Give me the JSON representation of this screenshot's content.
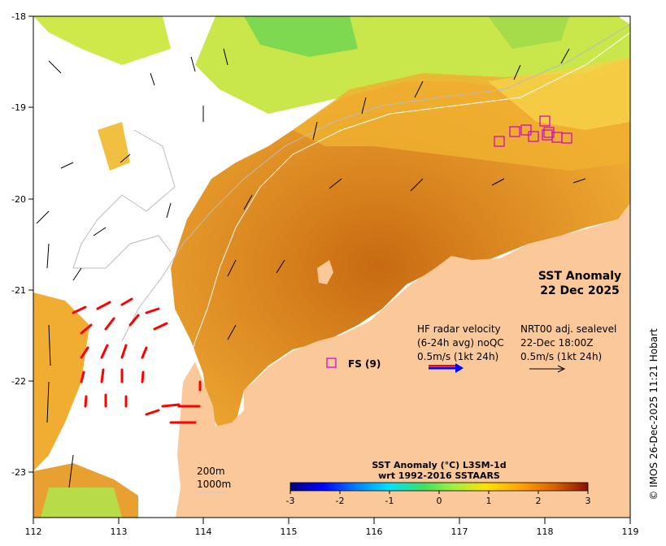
{
  "title": "SST Anomaly",
  "date": "22 Dec 2025",
  "credit": "© IMOS 26-Dec-2025 11:21 Hobart",
  "hf_legend": {
    "line1": "HF radar velocity",
    "line2": "(6-24h avg) noQC",
    "line3": "0.5m/s (1kt 24h)"
  },
  "sealevel_legend": {
    "line1": "NRT00 adj. sealevel",
    "line2": "22-Dec 18:00Z",
    "line3": "0.5m/s (1kt 24h)"
  },
  "fs_label": "FS (9)",
  "depth_labels": [
    "200m",
    "1000m"
  ],
  "colorbar": {
    "title_line1": "SST Anomaly (°C) L3SM-1d",
    "title_line2": "wrt 1992-2016 SSTAARS",
    "ticks": [
      "-3",
      "-2",
      "-1",
      "0",
      "1",
      "2",
      "3"
    ],
    "tick_values": [
      -3,
      -2,
      -1,
      0,
      1,
      2,
      3
    ],
    "stops": [
      "#00007f",
      "#0000ff",
      "#0080ff",
      "#00ffff",
      "#40ff80",
      "#ffff00",
      "#ffb000",
      "#e07000",
      "#b03000",
      "#800000"
    ]
  },
  "axes": {
    "x_ticks": [
      "112",
      "113",
      "114",
      "115",
      "116",
      "117",
      "118",
      "119"
    ],
    "y_ticks": [
      "-18",
      "-19",
      "-20",
      "-21",
      "-22",
      "-23"
    ]
  },
  "colors": {
    "land": "#fbc89a",
    "hf_arrow": "#ff0000",
    "fs_box": "#cc00cc"
  }
}
